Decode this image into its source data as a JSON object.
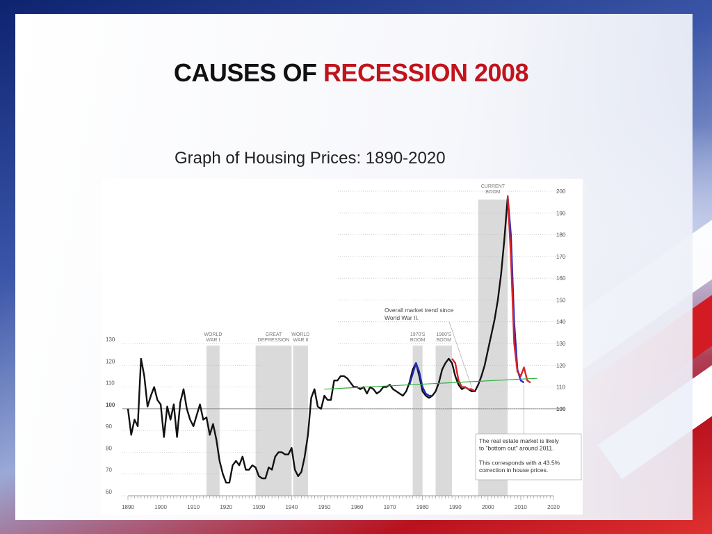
{
  "slide": {
    "title_part1": "CAUSES OF ",
    "title_part2": "RECESSION 2008",
    "subtitle": "Graph of Housing Prices: 1890-2020"
  },
  "colors": {
    "accent": "#c0141c",
    "history": "#111111",
    "blue_series": "#1f2bbf",
    "red_series": "#d8232a",
    "trend": "#2fae3a",
    "band": "#dadada"
  },
  "chart_data": {
    "type": "line",
    "title": "",
    "xlabel": "",
    "ylabel": "",
    "xlim": [
      1890,
      2020
    ],
    "ylim": [
      60,
      200
    ],
    "x_ticks": [
      1890,
      1900,
      1910,
      1920,
      1930,
      1940,
      1950,
      1960,
      1970,
      1980,
      1990,
      2000,
      2010,
      2020
    ],
    "y_ticks_left": [
      60,
      70,
      80,
      90,
      100,
      110,
      120,
      130
    ],
    "y_ticks_right": [
      100,
      110,
      120,
      130,
      140,
      150,
      160,
      170,
      180,
      190,
      200
    ],
    "grid": true,
    "bands": [
      {
        "label1": "WORLD",
        "label2": "WAR I",
        "from": 1914,
        "to": 1918
      },
      {
        "label1": "GREAT",
        "label2": "DEPRESSION",
        "from": 1929,
        "to": 1940
      },
      {
        "label1": "WORLD",
        "label2": "WAR II",
        "from": 1940.5,
        "to": 1945
      },
      {
        "label1": "1970'S",
        "label2": "BOOM",
        "from": 1977,
        "to": 1980
      },
      {
        "label1": "1980'S",
        "label2": "BOOM",
        "from": 1984,
        "to": 1989
      },
      {
        "label1": "CURRENT",
        "label2": "BOOM",
        "from": 1997,
        "to": 2006
      }
    ],
    "series": [
      {
        "x": [
          1890,
          1891,
          1892,
          1893,
          1894,
          1895,
          1896,
          1897,
          1898,
          1899,
          1900,
          1901,
          1902,
          1903,
          1904,
          1905,
          1906,
          1907,
          1908,
          1909,
          1910,
          1911,
          1912,
          1913,
          1914,
          1915,
          1916,
          1917,
          1918,
          1919,
          1920,
          1921,
          1922,
          1923,
          1924,
          1925,
          1926,
          1927,
          1928,
          1929,
          1930,
          1931,
          1932,
          1933,
          1934,
          1935,
          1936,
          1937,
          1938,
          1939,
          1940,
          1941,
          1942,
          1943,
          1944,
          1945,
          1946,
          1947,
          1948,
          1949,
          1950,
          1951,
          1952,
          1953,
          1954,
          1955,
          1956,
          1957,
          1958,
          1959,
          1960,
          1961,
          1962,
          1963,
          1964,
          1965,
          1966,
          1967,
          1968,
          1969,
          1970,
          1971,
          1972,
          1973,
          1974,
          1975,
          1976,
          1977,
          1978,
          1979,
          1980,
          1981,
          1982,
          1983,
          1984,
          1985,
          1986,
          1987,
          1988,
          1989,
          1990,
          1991,
          1992,
          1993,
          1994,
          1995,
          1996,
          1997,
          1998,
          1999,
          2000,
          2001,
          2002,
          2003,
          2004,
          2005,
          2006
        ],
        "values": [
          100,
          88,
          95,
          92,
          123,
          115,
          101,
          106,
          110,
          104,
          102,
          87,
          101,
          95,
          102,
          87,
          103,
          109,
          100,
          95,
          92,
          97,
          102,
          95,
          96,
          88,
          93,
          86,
          76,
          70,
          66,
          66,
          74,
          76,
          74,
          78,
          72,
          72,
          74,
          73,
          69,
          68,
          68,
          73,
          72,
          78,
          80,
          80,
          79,
          79,
          82,
          72,
          69,
          71,
          78,
          88,
          105,
          109,
          101,
          100,
          106,
          104,
          104,
          113,
          113,
          115,
          115,
          114,
          112,
          110,
          110,
          109,
          110,
          107,
          110,
          109,
          107,
          108,
          110,
          110,
          111,
          109,
          108,
          107,
          106,
          108,
          112,
          118,
          121,
          115,
          108,
          106,
          105,
          106,
          108,
          112,
          118,
          121,
          123,
          121,
          115,
          111,
          109,
          110,
          109,
          108,
          108,
          111,
          115,
          120,
          127,
          134,
          141,
          150,
          162,
          178,
          197
        ],
        "color": "#111111"
      },
      {
        "x": [
          1976,
          1977,
          1978,
          1979,
          1980,
          1981,
          1982,
          1983
        ],
        "values": [
          111,
          116,
          121,
          117,
          110,
          107,
          106,
          106
        ],
        "color": "#1f2bbf"
      },
      {
        "x": [
          1989,
          1990,
          1991,
          1992,
          1993,
          1994,
          1995,
          1996
        ],
        "values": [
          123,
          121,
          113,
          110,
          110,
          109,
          109,
          108
        ],
        "color": "#d8232a"
      },
      {
        "x": [
          2006,
          2007,
          2008,
          2009,
          2010,
          2011
        ],
        "values": [
          198,
          180,
          140,
          118,
          113,
          112
        ],
        "color": "#1f2bbf"
      },
      {
        "x": [
          2006,
          2007,
          2008,
          2009,
          2010,
          2011,
          2012,
          2013
        ],
        "values": [
          198,
          170,
          130,
          117,
          115,
          119,
          113,
          112
        ],
        "color": "#d8232a"
      },
      {
        "x": [
          1950,
          2015
        ],
        "values": [
          109,
          114
        ],
        "color": "#2fae3a"
      }
    ],
    "annotations": [
      {
        "lines": [
          "Overall market trend since",
          "World War II."
        ]
      },
      {
        "lines": [
          "The real estate market is likely",
          "to \"bottom out\" around 2011.",
          "",
          "This corresponds with a 43.5%",
          "correction in house prices."
        ]
      }
    ]
  }
}
